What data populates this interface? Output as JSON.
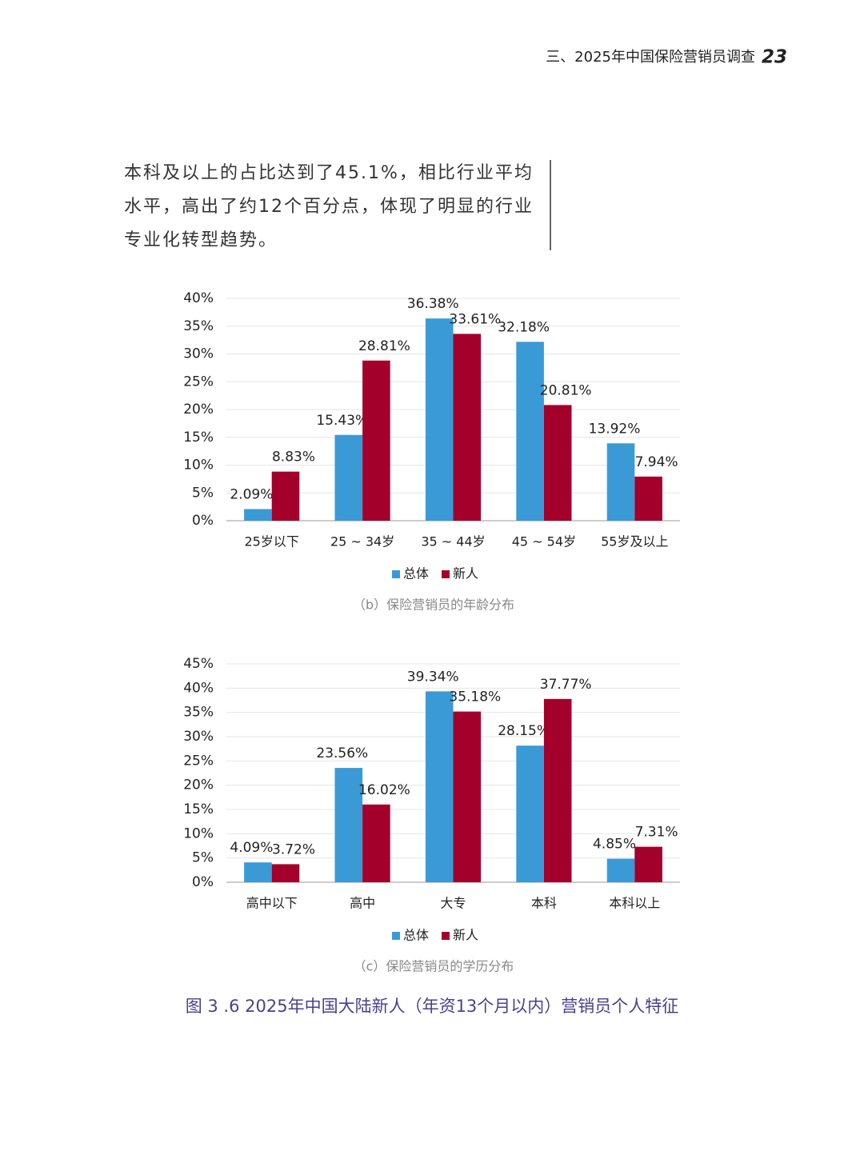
{
  "header": {
    "title": "三、2025年中国保险营销员调查",
    "page": "23"
  },
  "paragraph": [
    "本科及以上的占比达到了45.1%，相比行业平均",
    "水平，高出了约12个百分点，体现了明显的行业",
    "专业化转型趋势。"
  ],
  "chart_data": [
    {
      "type": "bar",
      "caption": "（b）保险营销员的年龄分布",
      "categories": [
        "25岁以下",
        "25 ~ 34岁",
        "35 ~ 44岁",
        "45 ~ 54岁",
        "55岁及以上"
      ],
      "series": [
        {
          "name": "总体",
          "color": "#3a9ad6",
          "values": [
            2.09,
            15.43,
            36.38,
            32.18,
            13.92
          ],
          "value_labels": [
            "2.09%",
            "15.43%",
            "36.38%",
            "32.18%",
            "13.92%"
          ]
        },
        {
          "name": "新人",
          "color": "#a3002c",
          "values": [
            8.83,
            28.81,
            33.61,
            20.81,
            7.94
          ],
          "value_labels": [
            "8.83%",
            "28.81%",
            "33.61%",
            "20.81%",
            "7.94%"
          ]
        }
      ],
      "ylim": [
        0,
        40
      ],
      "yticks": [
        {
          "value": 0,
          "label": "0%"
        },
        {
          "value": 5,
          "label": "5%"
        },
        {
          "value": 10,
          "label": "10%"
        },
        {
          "value": 15,
          "label": "15%"
        },
        {
          "value": 20,
          "label": "20%"
        },
        {
          "value": 25,
          "label": "25%"
        },
        {
          "value": 30,
          "label": "30%"
        },
        {
          "value": 35,
          "label": "35%"
        },
        {
          "value": 40,
          "label": "40%"
        }
      ],
      "grid": true,
      "legend": "bottom"
    },
    {
      "type": "bar",
      "caption": "（c）保险营销员的学历分布",
      "categories": [
        "高中以下",
        "高中",
        "大专",
        "本科",
        "本科以上"
      ],
      "series": [
        {
          "name": "总体",
          "color": "#3a9ad6",
          "values": [
            4.09,
            23.56,
            39.34,
            28.15,
            4.85
          ],
          "value_labels": [
            "4.09%",
            "23.56%",
            "39.34%",
            "28.15%",
            "4.85%"
          ]
        },
        {
          "name": "新人",
          "color": "#a3002c",
          "values": [
            3.72,
            16.02,
            35.18,
            37.77,
            7.31
          ],
          "value_labels": [
            "3.72%",
            "16.02%",
            "35.18%",
            "37.77%",
            "7.31%"
          ]
        }
      ],
      "ylim": [
        0,
        45
      ],
      "yticks": [
        {
          "value": 0,
          "label": "0%"
        },
        {
          "value": 5,
          "label": "5%"
        },
        {
          "value": 10,
          "label": "10%"
        },
        {
          "value": 15,
          "label": "15%"
        },
        {
          "value": 20,
          "label": "20%"
        },
        {
          "value": 25,
          "label": "25%"
        },
        {
          "value": 30,
          "label": "30%"
        },
        {
          "value": 35,
          "label": "35%"
        },
        {
          "value": 40,
          "label": "40%"
        },
        {
          "value": 45,
          "label": "45%"
        }
      ],
      "grid": true,
      "legend": "bottom"
    }
  ],
  "figure_title": "图 3 .6  2025年中国大陆新人（年资13个月以内）营销员个人特征"
}
